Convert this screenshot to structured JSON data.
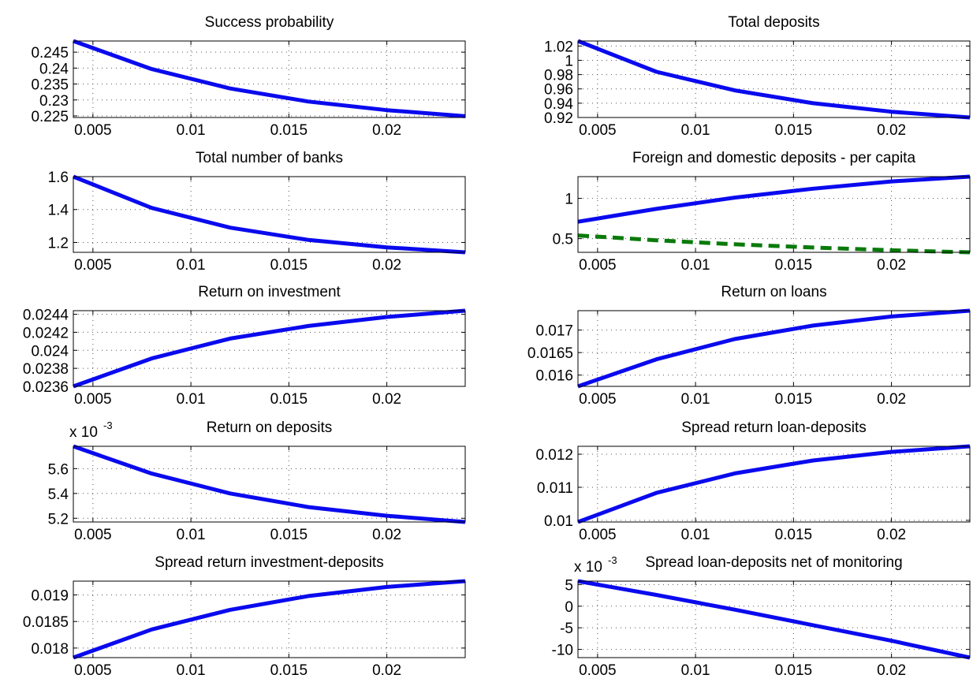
{
  "theme": {
    "primary_line": "#0a0aee",
    "secondary_line": "#0a7a0a",
    "grid_color": "#555555",
    "axis_color": "#000000",
    "background": "#ffffff"
  },
  "chart_data": [
    {
      "type": "line",
      "title": "Success probability",
      "x": [
        0.004,
        0.008,
        0.012,
        0.016,
        0.02,
        0.024
      ],
      "series": [
        {
          "values": [
            0.2485,
            0.2397,
            0.2336,
            0.2295,
            0.2268,
            0.2249
          ]
        }
      ],
      "xlim": [
        0.004,
        0.024
      ],
      "ylim": [
        0.2245,
        0.2485
      ],
      "xticks": [
        0.005,
        0.01,
        0.015,
        0.02
      ],
      "xtick_labels": [
        "0.005",
        "0.01",
        "0.015",
        "0.02"
      ],
      "yticks": [
        0.225,
        0.23,
        0.235,
        0.24,
        0.245
      ],
      "ytick_labels": [
        "0.225",
        "0.23",
        "0.235",
        "0.24",
        "0.245"
      ],
      "multiplier": "",
      "grid": true
    },
    {
      "type": "line",
      "title": "Total deposits",
      "x": [
        0.004,
        0.008,
        0.012,
        0.016,
        0.02,
        0.024
      ],
      "series": [
        {
          "values": [
            1.027,
            0.984,
            0.958,
            0.94,
            0.928,
            0.92
          ]
        }
      ],
      "xlim": [
        0.004,
        0.024
      ],
      "ylim": [
        0.92,
        1.027
      ],
      "xticks": [
        0.005,
        0.01,
        0.015,
        0.02
      ],
      "xtick_labels": [
        "0.005",
        "0.01",
        "0.015",
        "0.02"
      ],
      "yticks": [
        0.92,
        0.94,
        0.96,
        0.98,
        1.0,
        1.02
      ],
      "ytick_labels": [
        "0.92",
        "0.94",
        "0.96",
        "0.98",
        "1",
        "1.02"
      ],
      "multiplier": "",
      "grid": true
    },
    {
      "type": "line",
      "title": "Total number of banks",
      "x": [
        0.004,
        0.008,
        0.012,
        0.016,
        0.02,
        0.024
      ],
      "series": [
        {
          "values": [
            1.6,
            1.41,
            1.29,
            1.215,
            1.17,
            1.14
          ]
        }
      ],
      "xlim": [
        0.004,
        0.024
      ],
      "ylim": [
        1.14,
        1.6
      ],
      "xticks": [
        0.005,
        0.01,
        0.015,
        0.02
      ],
      "xtick_labels": [
        "0.005",
        "0.01",
        "0.015",
        "0.02"
      ],
      "yticks": [
        1.2,
        1.4,
        1.6
      ],
      "ytick_labels": [
        "1.2",
        "1.4",
        "1.6"
      ],
      "multiplier": "",
      "grid": true
    },
    {
      "type": "line",
      "title": "Foreign and domestic deposits - per capita",
      "x": [
        0.004,
        0.008,
        0.012,
        0.016,
        0.02,
        0.024
      ],
      "series": [
        {
          "values": [
            0.71,
            0.87,
            1.01,
            1.12,
            1.21,
            1.27
          ],
          "style": "solid"
        },
        {
          "values": [
            0.54,
            0.48,
            0.43,
            0.39,
            0.355,
            0.33
          ],
          "style": "dashed"
        }
      ],
      "xlim": [
        0.004,
        0.024
      ],
      "ylim": [
        0.33,
        1.27
      ],
      "xticks": [
        0.005,
        0.01,
        0.015,
        0.02
      ],
      "xtick_labels": [
        "0.005",
        "0.01",
        "0.015",
        "0.02"
      ],
      "yticks": [
        0.5,
        1.0
      ],
      "ytick_labels": [
        "0.5",
        "1"
      ],
      "multiplier": "",
      "grid": true
    },
    {
      "type": "line",
      "title": "Return on investment",
      "x": [
        0.004,
        0.008,
        0.012,
        0.016,
        0.02,
        0.024
      ],
      "series": [
        {
          "values": [
            0.0236,
            0.02391,
            0.02413,
            0.02427,
            0.02437,
            0.02444
          ]
        }
      ],
      "xlim": [
        0.004,
        0.024
      ],
      "ylim": [
        0.0236,
        0.02444
      ],
      "xticks": [
        0.005,
        0.01,
        0.015,
        0.02
      ],
      "xtick_labels": [
        "0.005",
        "0.01",
        "0.015",
        "0.02"
      ],
      "yticks": [
        0.0236,
        0.0238,
        0.024,
        0.0242,
        0.0244
      ],
      "ytick_labels": [
        "0.0236",
        "0.0238",
        "0.024",
        "0.0242",
        "0.0244"
      ],
      "multiplier": "",
      "grid": true
    },
    {
      "type": "line",
      "title": "Return on loans",
      "x": [
        0.004,
        0.008,
        0.012,
        0.016,
        0.02,
        0.024
      ],
      "series": [
        {
          "values": [
            0.01575,
            0.01635,
            0.0168,
            0.0171,
            0.0173,
            0.01743
          ]
        }
      ],
      "xlim": [
        0.004,
        0.024
      ],
      "ylim": [
        0.01575,
        0.01743
      ],
      "xticks": [
        0.005,
        0.01,
        0.015,
        0.02
      ],
      "xtick_labels": [
        "0.005",
        "0.01",
        "0.015",
        "0.02"
      ],
      "yticks": [
        0.016,
        0.0165,
        0.017
      ],
      "ytick_labels": [
        "0.016",
        "0.0165",
        "0.017"
      ],
      "multiplier": "",
      "grid": true
    },
    {
      "type": "line",
      "title": "Return on deposits",
      "x": [
        0.004,
        0.008,
        0.012,
        0.016,
        0.02,
        0.024
      ],
      "series": [
        {
          "values": [
            5.78,
            5.56,
            5.4,
            5.29,
            5.22,
            5.17
          ]
        }
      ],
      "xlim": [
        0.004,
        0.024
      ],
      "ylim": [
        5.17,
        5.78
      ],
      "xticks": [
        0.005,
        0.01,
        0.015,
        0.02
      ],
      "xtick_labels": [
        "0.005",
        "0.01",
        "0.015",
        "0.02"
      ],
      "yticks": [
        5.2,
        5.4,
        5.6
      ],
      "ytick_labels": [
        "5.2",
        "5.4",
        "5.6"
      ],
      "multiplier": "x 10",
      "multiplier_exp": "-3",
      "grid": true
    },
    {
      "type": "line",
      "title": "Spread return loan-deposits",
      "x": [
        0.004,
        0.008,
        0.012,
        0.016,
        0.02,
        0.024
      ],
      "series": [
        {
          "values": [
            0.00995,
            0.01083,
            0.01142,
            0.01181,
            0.01207,
            0.01224
          ]
        }
      ],
      "xlim": [
        0.004,
        0.024
      ],
      "ylim": [
        0.00995,
        0.01224
      ],
      "xticks": [
        0.005,
        0.01,
        0.015,
        0.02
      ],
      "xtick_labels": [
        "0.005",
        "0.01",
        "0.015",
        "0.02"
      ],
      "yticks": [
        0.01,
        0.011,
        0.012
      ],
      "ytick_labels": [
        "0.01",
        "0.011",
        "0.012"
      ],
      "multiplier": "",
      "grid": true
    },
    {
      "type": "line",
      "title": "Spread return investment-deposits",
      "x": [
        0.004,
        0.008,
        0.012,
        0.016,
        0.02,
        0.024
      ],
      "series": [
        {
          "values": [
            0.01782,
            0.01835,
            0.01872,
            0.01898,
            0.01915,
            0.01926
          ]
        }
      ],
      "xlim": [
        0.004,
        0.024
      ],
      "ylim": [
        0.01782,
        0.01926
      ],
      "xticks": [
        0.005,
        0.01,
        0.015,
        0.02
      ],
      "xtick_labels": [
        "0.005",
        "0.01",
        "0.015",
        "0.02"
      ],
      "yticks": [
        0.018,
        0.0185,
        0.019
      ],
      "ytick_labels": [
        "0.018",
        "0.0185",
        "0.019"
      ],
      "multiplier": "",
      "grid": true
    },
    {
      "type": "line",
      "title": "Spread loan-deposits net of monitoring",
      "x": [
        0.004,
        0.008,
        0.012,
        0.016,
        0.02,
        0.024
      ],
      "series": [
        {
          "values": [
            5.8,
            2.6,
            -0.8,
            -4.4,
            -8.0,
            -11.9
          ]
        }
      ],
      "xlim": [
        0.004,
        0.024
      ],
      "ylim": [
        -11.9,
        5.8
      ],
      "xticks": [
        0.005,
        0.01,
        0.015,
        0.02
      ],
      "xtick_labels": [
        "0.005",
        "0.01",
        "0.015",
        "0.02"
      ],
      "yticks": [
        -10,
        -5,
        0,
        5
      ],
      "ytick_labels": [
        "-10",
        "-5",
        "0",
        "5"
      ],
      "multiplier": "x 10",
      "multiplier_exp": "-3",
      "grid": true
    }
  ]
}
